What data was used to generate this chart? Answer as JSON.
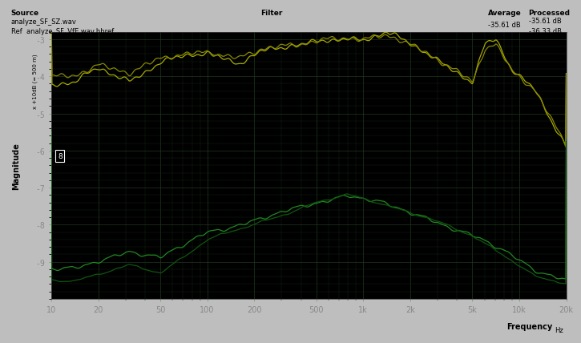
{
  "source_label": "Source\nanalyze_SF_SZ.wav",
  "ref_label": "Ref  analyze_SF_VfE.wav.hbref",
  "filter_label": "Filter",
  "average_label": "Average\n-35.61 dB",
  "processed_label": "Processed\n-35.61 dB\n-36.33 dB",
  "xlabel": "Frequency",
  "freq_unit": "Hz",
  "ylabel": "Magnitude",
  "y_sublabel": "x +10dB (= 500 m)",
  "background_color": "#000000",
  "outer_bg": "#c8c8c8",
  "grid_color": "#1e3a1e",
  "line_color_upper_bright": "#aaaa00",
  "line_color_upper_dark": "#666600",
  "line_color_lower_bright": "#005500",
  "line_color_lower_dark": "#003300",
  "xmin": 10,
  "xmax": 20000,
  "ymin": -100,
  "ymax": -28,
  "ytick_vals": [
    -30,
    -40,
    -50,
    -60,
    -70,
    -80,
    -90
  ],
  "ytick_labels": [
    "-3",
    "-4",
    "-5",
    "-6",
    "-7",
    "-8",
    "-9"
  ],
  "xtick_vals": [
    10,
    20,
    50,
    100,
    200,
    500,
    1000,
    2000,
    5000,
    10000,
    20000
  ],
  "xtick_labels": [
    "10",
    "20",
    "50",
    "100",
    "200",
    "500",
    "1k",
    "2k",
    "5k",
    "10k",
    "20k"
  ]
}
